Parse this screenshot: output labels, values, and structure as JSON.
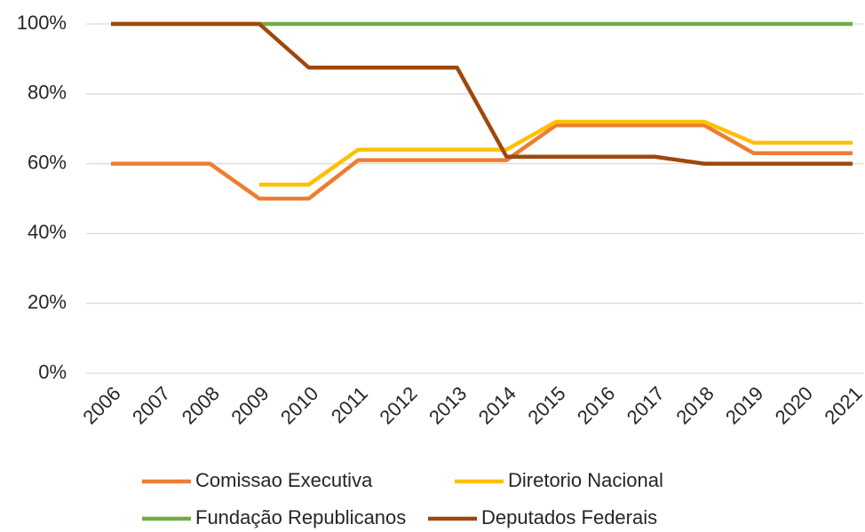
{
  "chart_data": {
    "type": "line",
    "categories": [
      "2006",
      "2007",
      "2008",
      "2009",
      "2010",
      "2011",
      "2012",
      "2013",
      "2014",
      "2015",
      "2016",
      "2017",
      "2018",
      "2019",
      "2020",
      "2021"
    ],
    "series": [
      {
        "name": "Comissao Executiva",
        "color": "#ED7D31",
        "values": [
          60,
          60,
          60,
          50,
          50,
          61,
          61,
          61,
          61,
          71,
          71,
          71,
          71,
          63,
          63,
          63
        ]
      },
      {
        "name": "Diretorio Nacional",
        "color": "#FFC000",
        "values": [
          null,
          null,
          null,
          54,
          54,
          64,
          64,
          64,
          64,
          72,
          72,
          72,
          72,
          66,
          66,
          66
        ]
      },
      {
        "name": "Fundação Republicanos",
        "color": "#70AD47",
        "values": [
          100,
          100,
          100,
          100,
          100,
          100,
          100,
          100,
          100,
          100,
          100,
          100,
          100,
          100,
          100,
          100
        ]
      },
      {
        "name": "Deputados Federais",
        "color": "#9E480E",
        "values": [
          100,
          100,
          100,
          100,
          87.5,
          87.5,
          87.5,
          87.5,
          62,
          62,
          62,
          62,
          60,
          60,
          60,
          60
        ]
      }
    ],
    "ylim": [
      0,
      100
    ],
    "yticks": [
      {
        "value": 0,
        "label": "0%"
      },
      {
        "value": 20,
        "label": "20%"
      },
      {
        "value": 40,
        "label": "40%"
      },
      {
        "value": 60,
        "label": "60%"
      },
      {
        "value": 80,
        "label": "80%"
      },
      {
        "value": 100,
        "label": "100%"
      }
    ],
    "grid": true
  }
}
